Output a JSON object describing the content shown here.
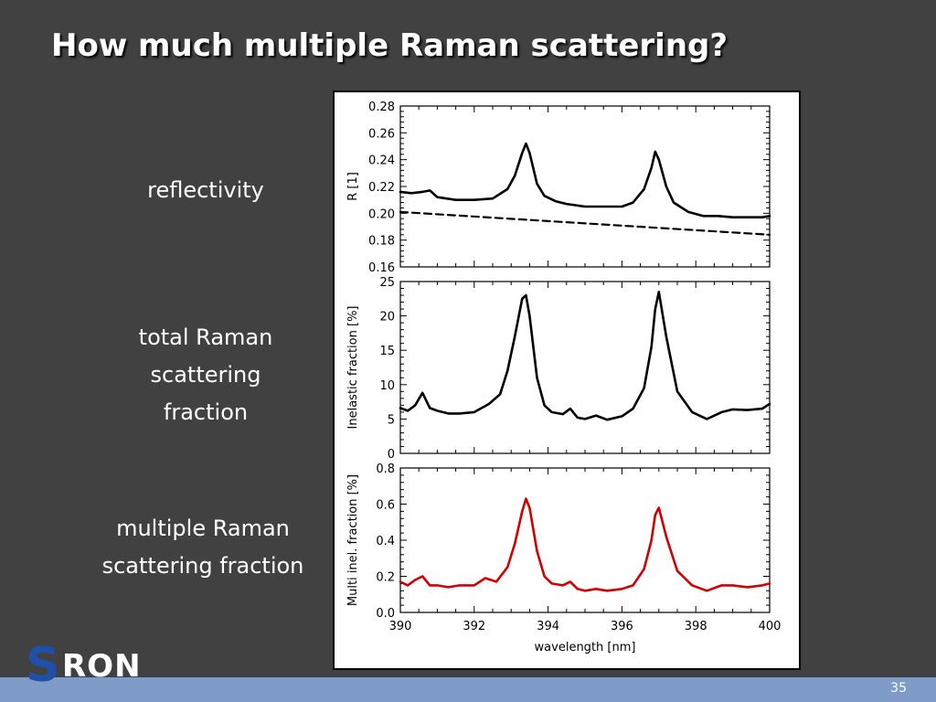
{
  "slide": {
    "title": "How much multiple Raman scattering?",
    "page_number": "35",
    "labels": {
      "reflectivity": [
        "reflectivity"
      ],
      "total_raman": [
        "total Raman",
        "scattering",
        "fraction"
      ],
      "multiple_raman": [
        "multiple Raman",
        "scattering fraction"
      ]
    },
    "logo": {
      "s": "S",
      "ron": "RON"
    }
  },
  "colors": {
    "background": "#414141",
    "footer": "#7f9bc8",
    "series_black": "#000000",
    "series_red": "#d40000",
    "logo_blue": "#1f4fa8"
  },
  "chart_data": [
    {
      "type": "line",
      "ylabel": "R [1]",
      "xlabel": "",
      "xlim": [
        390,
        400
      ],
      "ylim": [
        0.16,
        0.28
      ],
      "yticks": [
        "0.16",
        "0.18",
        "0.20",
        "0.22",
        "0.24",
        "0.26",
        "0.28"
      ],
      "series": [
        {
          "style": "solid",
          "color": "#000000",
          "x": [
            390,
            390.3,
            390.6,
            390.8,
            391,
            391.5,
            392,
            392.5,
            392.9,
            393.1,
            393.3,
            393.4,
            393.5,
            393.7,
            393.9,
            394.2,
            394.5,
            395,
            395.5,
            396,
            396.3,
            396.6,
            396.8,
            396.9,
            397,
            397.2,
            397.4,
            397.8,
            398.2,
            398.6,
            399,
            399.5,
            399.8,
            400
          ],
          "y": [
            0.216,
            0.215,
            0.216,
            0.217,
            0.212,
            0.21,
            0.21,
            0.211,
            0.218,
            0.228,
            0.245,
            0.252,
            0.245,
            0.222,
            0.213,
            0.209,
            0.207,
            0.205,
            0.205,
            0.205,
            0.208,
            0.218,
            0.234,
            0.246,
            0.24,
            0.22,
            0.208,
            0.201,
            0.198,
            0.198,
            0.197,
            0.197,
            0.197,
            0.198
          ]
        },
        {
          "style": "dashed",
          "color": "#000000",
          "x": [
            390,
            400
          ],
          "y": [
            0.201,
            0.184
          ]
        }
      ]
    },
    {
      "type": "line",
      "ylabel": "Inelastic fraction [%]",
      "xlabel": "",
      "xlim": [
        390,
        400
      ],
      "ylim": [
        0,
        25
      ],
      "yticks": [
        "0",
        "5",
        "10",
        "15",
        "20",
        "25"
      ],
      "series": [
        {
          "style": "solid",
          "color": "#000000",
          "x": [
            390,
            390.2,
            390.4,
            390.6,
            390.8,
            391,
            391.3,
            391.6,
            392,
            392.4,
            392.7,
            392.9,
            393.1,
            393.3,
            393.4,
            393.5,
            393.7,
            393.9,
            394.1,
            394.4,
            394.6,
            394.8,
            395,
            395.3,
            395.6,
            396,
            396.3,
            396.6,
            396.8,
            396.9,
            397,
            397.2,
            397.5,
            397.9,
            398.3,
            398.7,
            399,
            399.4,
            399.8,
            400
          ],
          "y": [
            6.6,
            6.2,
            7.0,
            8.8,
            6.6,
            6.2,
            5.8,
            5.8,
            6.0,
            7.2,
            8.6,
            12.0,
            17.0,
            22.5,
            23.0,
            20.0,
            11.0,
            7.0,
            6.0,
            5.7,
            6.5,
            5.2,
            5.0,
            5.5,
            4.9,
            5.4,
            6.5,
            9.5,
            15.5,
            21.0,
            23.5,
            17.0,
            9.0,
            6.0,
            5.0,
            6.0,
            6.4,
            6.3,
            6.5,
            7.2
          ]
        }
      ]
    },
    {
      "type": "line",
      "ylabel": "Multi inel. fraction [%]",
      "xlabel": "wavelength [nm]",
      "xlim": [
        390,
        400
      ],
      "ylim": [
        0,
        0.8
      ],
      "xticks": [
        "390",
        "392",
        "394",
        "396",
        "398",
        "400"
      ],
      "yticks": [
        "0.0",
        "0.2",
        "0.4",
        "0.6",
        "0.8"
      ],
      "series": [
        {
          "style": "solid",
          "color": "#d40000",
          "x": [
            390,
            390.2,
            390.4,
            390.6,
            390.8,
            391,
            391.3,
            391.6,
            392,
            392.3,
            392.6,
            392.9,
            393.1,
            393.3,
            393.4,
            393.5,
            393.7,
            393.9,
            394.1,
            394.4,
            394.6,
            394.8,
            395,
            395.3,
            395.6,
            396,
            396.3,
            396.6,
            396.8,
            396.9,
            397,
            397.2,
            397.5,
            397.9,
            398.3,
            398.7,
            399,
            399.4,
            399.8,
            400
          ],
          "y": [
            0.17,
            0.15,
            0.18,
            0.2,
            0.15,
            0.15,
            0.14,
            0.15,
            0.15,
            0.19,
            0.17,
            0.25,
            0.38,
            0.56,
            0.63,
            0.58,
            0.34,
            0.2,
            0.16,
            0.15,
            0.17,
            0.13,
            0.12,
            0.13,
            0.12,
            0.13,
            0.15,
            0.24,
            0.4,
            0.54,
            0.58,
            0.42,
            0.23,
            0.15,
            0.12,
            0.15,
            0.15,
            0.14,
            0.15,
            0.16
          ]
        }
      ]
    }
  ]
}
